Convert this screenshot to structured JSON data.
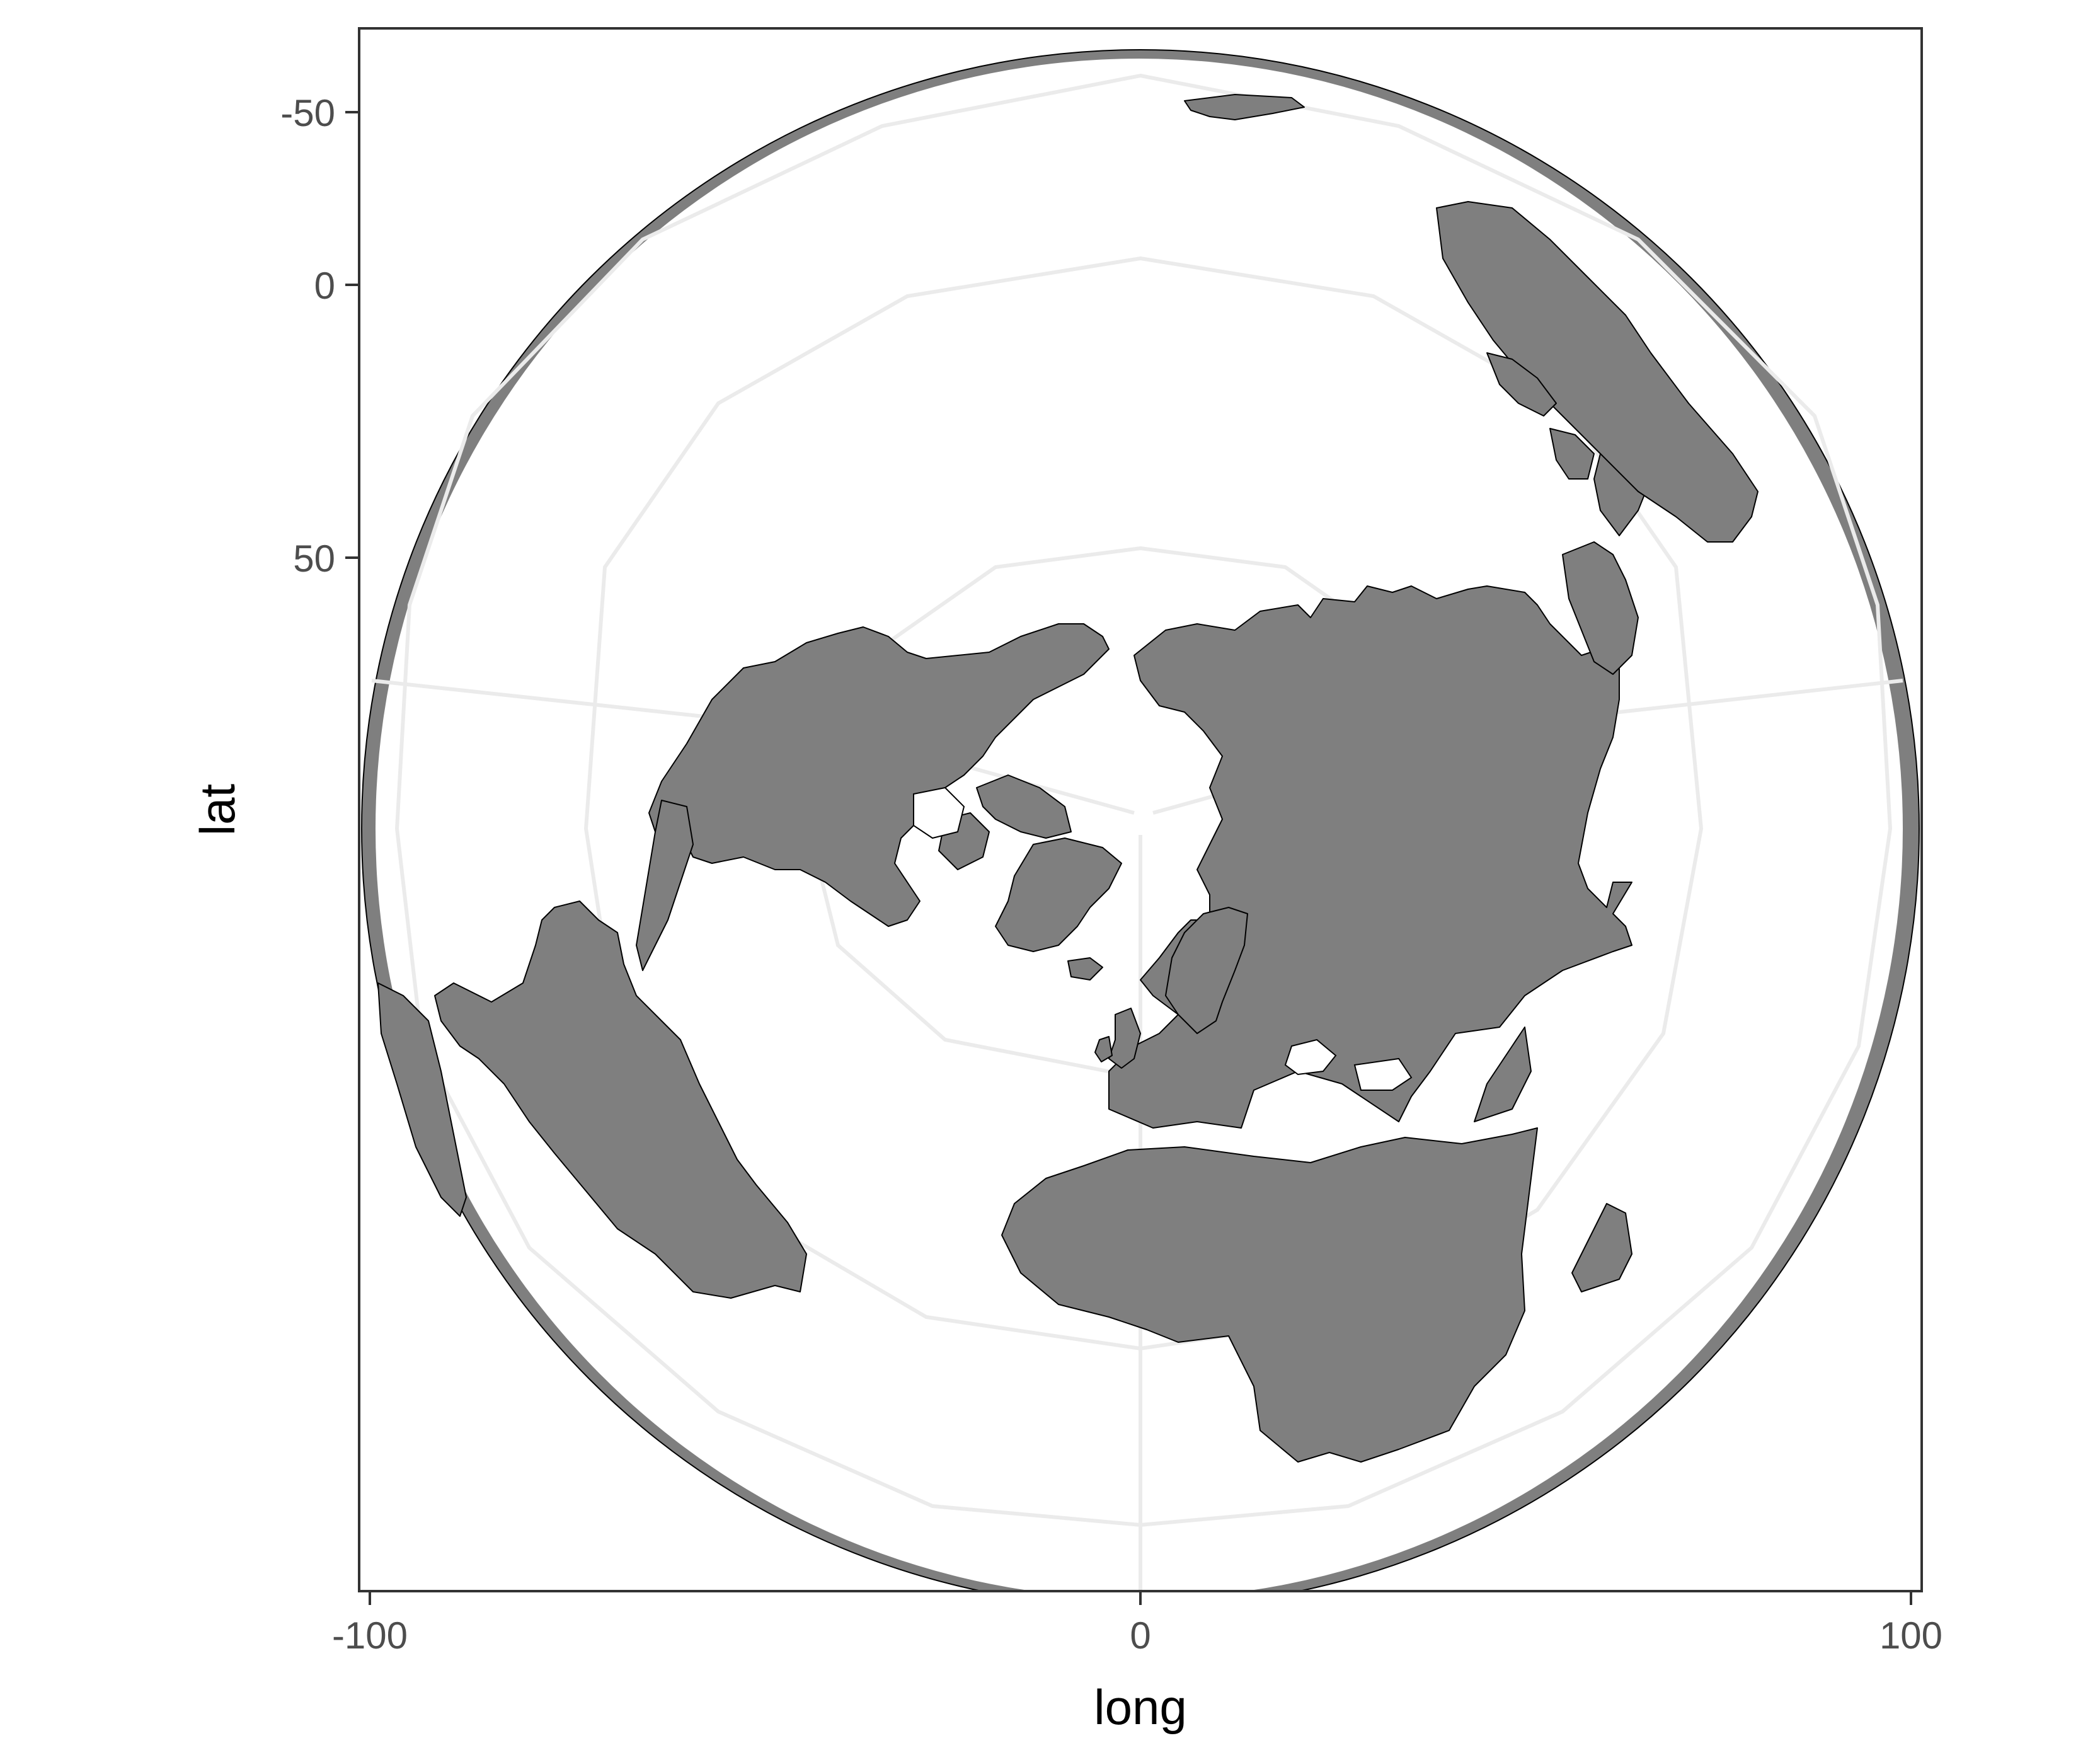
{
  "chart_data": {
    "type": "map",
    "projection": "orthographic",
    "center": {
      "long": 0,
      "lat": 90
    },
    "xlabel": "long",
    "ylabel": "lat",
    "x_ticks": [
      "-100",
      "0",
      "100"
    ],
    "y_ticks": [
      "-50",
      "0",
      "50"
    ],
    "xlim": [
      -100,
      100
    ],
    "ylim": [
      -60,
      150
    ],
    "grid": true,
    "graticule_parallels": [
      0,
      30,
      60
    ],
    "graticule_meridians": [
      0,
      90,
      180,
      -90
    ],
    "colors": {
      "land_fill": "#7f7f7f",
      "land_outline": "#000000",
      "gridline": "#ebebeb",
      "panel_border": "#333333",
      "tick_label": "#4d4d4d"
    }
  }
}
